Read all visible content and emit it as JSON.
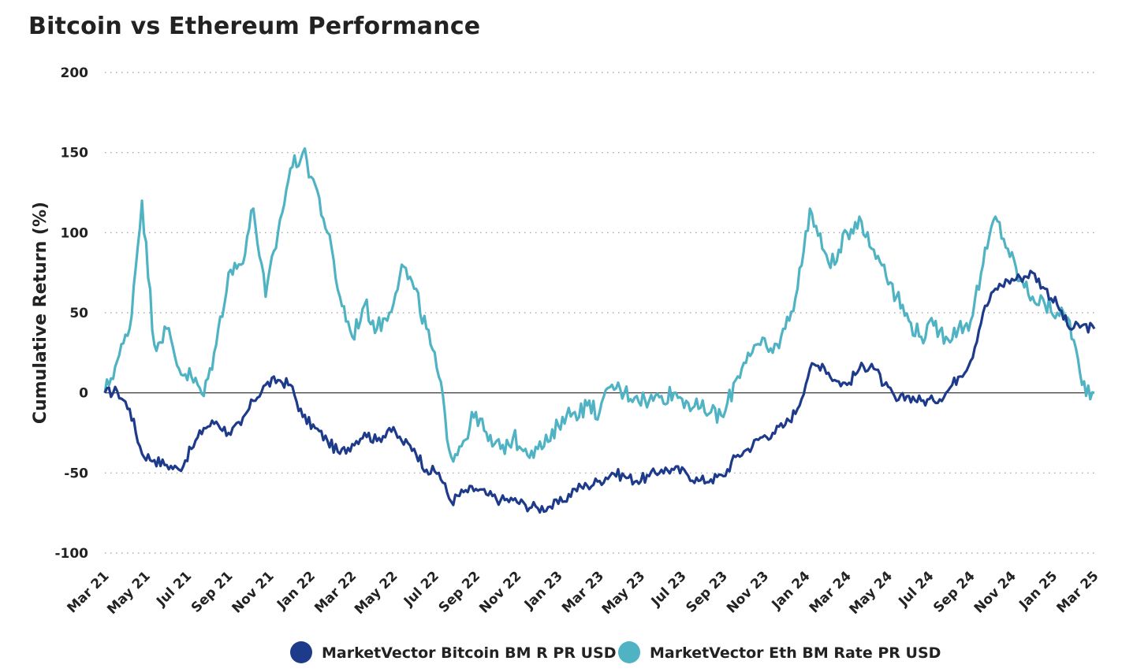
{
  "chart_data": {
    "type": "line",
    "title": "Bitcoin vs Ethereum Performance",
    "ylabel": "Cumulative Return (%)",
    "xlabel": "",
    "ylim": [
      -100,
      200
    ],
    "yticks": [
      200,
      150,
      100,
      50,
      0,
      -50,
      -100
    ],
    "grid": "horizontal-dotted",
    "legend_position": "bottom",
    "x_labels": [
      "Mar 21",
      "May 21",
      "Jul 21",
      "Sep 21",
      "Nov 21",
      "Jan 22",
      "Mar 22",
      "May 22",
      "Jul 22",
      "Sep 22",
      "Nov 22",
      "Jan 23",
      "Mar 23",
      "May 23",
      "Jul 23",
      "Sep 23",
      "Nov 23",
      "Jan 24",
      "Mar 24",
      "May 24",
      "Jul 24",
      "Sep 24",
      "Nov 24",
      "Jan 25",
      "Mar 25"
    ],
    "series": [
      {
        "name": "MarketVector Bitcoin BM R PR USD",
        "color": "#1e3a8a",
        "values": [
          0,
          1,
          -10,
          -38,
          -42,
          -45,
          -48,
          -35,
          -22,
          -18,
          -25,
          -20,
          -5,
          5,
          8,
          5,
          -15,
          -22,
          -30,
          -38,
          -32,
          -25,
          -30,
          -22,
          -30,
          -35,
          -48,
          -50,
          -68,
          -62,
          -60,
          -64,
          -67,
          -67,
          -70,
          -72,
          -71,
          -68,
          -60,
          -58,
          -55,
          -50,
          -52,
          -55,
          -52,
          -48,
          -48,
          -50,
          -55,
          -54,
          -52,
          -40,
          -35,
          -28,
          -25,
          -20,
          -10,
          15,
          18,
          8,
          5,
          15,
          18,
          5,
          -5,
          -2,
          -5,
          -5,
          0,
          10,
          20,
          50,
          65,
          70,
          72,
          75,
          65,
          55,
          40,
          42,
          40
        ]
      },
      {
        "name": "MarketVector Eth BM Rate PR USD",
        "color": "#4fb3c3",
        "values": [
          0,
          20,
          40,
          120,
          30,
          40,
          15,
          10,
          -2,
          30,
          75,
          80,
          115,
          60,
          100,
          140,
          150,
          130,
          100,
          60,
          35,
          55,
          40,
          50,
          80,
          65,
          40,
          10,
          -40,
          -30,
          -12,
          -30,
          -35,
          -28,
          -35,
          -35,
          -30,
          -15,
          -12,
          -8,
          -12,
          5,
          0,
          -2,
          -5,
          -2,
          0,
          -5,
          -10,
          -12,
          -15,
          8,
          25,
          30,
          25,
          40,
          65,
          115,
          90,
          80,
          100,
          110,
          90,
          80,
          60,
          45,
          35,
          42,
          35,
          40,
          45,
          80,
          110,
          90,
          70,
          60,
          55,
          50,
          45,
          5,
          0
        ]
      }
    ]
  }
}
